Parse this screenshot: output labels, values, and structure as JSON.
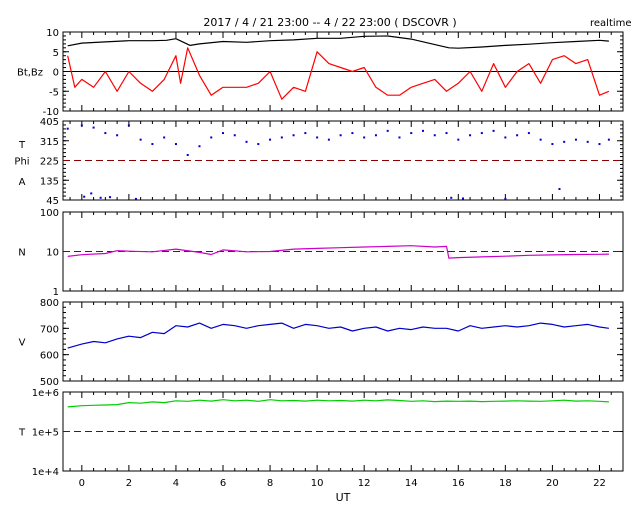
{
  "header": {
    "title": "2017 / 4 / 21   23:00 --  4 / 22   23:00 ( DSCOVR )",
    "mode": "realtime"
  },
  "chart_data": [
    {
      "id": "mag",
      "type": "line",
      "ylabel": "Bt,Bz",
      "ylim": [
        -10,
        10
      ],
      "yticks": [
        "10",
        "5",
        "0",
        "-5",
        "-10"
      ],
      "ref_lines": [
        0
      ],
      "series": [
        {
          "name": "Bt",
          "color": "#000000",
          "x": [
            -0.6,
            0,
            1,
            2,
            3,
            3.6,
            4,
            4.6,
            5,
            6,
            7,
            8,
            9,
            10,
            11,
            12,
            13,
            14,
            15,
            15.6,
            16,
            17,
            18,
            19,
            20,
            21,
            22,
            22.4
          ],
          "y": [
            6.5,
            7.2,
            7.5,
            7.8,
            7.8,
            7.9,
            8.3,
            6.6,
            7.0,
            7.6,
            7.4,
            7.8,
            8.0,
            8.4,
            8.4,
            8.9,
            9.0,
            8.2,
            6.8,
            6.0,
            5.9,
            6.2,
            6.6,
            6.9,
            7.3,
            7.6,
            7.9,
            7.7
          ]
        },
        {
          "name": "Bz",
          "color": "#ff0000",
          "x": [
            -0.6,
            -0.3,
            0,
            0.5,
            1,
            1.5,
            2,
            2.5,
            3,
            3.5,
            4,
            4.2,
            4.5,
            5,
            5.5,
            6,
            6.5,
            7,
            7.5,
            8,
            8.5,
            9,
            9.5,
            10,
            10.5,
            11,
            11.5,
            12,
            12.5,
            13,
            13.5,
            14,
            14.5,
            15,
            15.5,
            16,
            16.5,
            17,
            17.5,
            18,
            18.5,
            19,
            19.5,
            20,
            20.5,
            21,
            21.5,
            22,
            22.4
          ],
          "y": [
            4,
            -4,
            -2,
            -4,
            0,
            -5,
            0,
            -3,
            -5,
            -2,
            4,
            -3,
            6,
            -1,
            -6,
            -4,
            -4,
            -4,
            -3,
            0,
            -7,
            -4,
            -5,
            5,
            2,
            1,
            0,
            1,
            -4,
            -6,
            -6,
            -4,
            -3,
            -2,
            -5,
            -3,
            0,
            -5,
            2,
            -4,
            0,
            2,
            -3,
            3,
            4,
            2,
            3,
            -6,
            -5
          ]
        }
      ]
    },
    {
      "id": "phi",
      "type": "scatter",
      "ylabel": "T",
      "ylabel2": "Phi",
      "ylabel3": "A",
      "ylim": [
        45,
        405
      ],
      "yticks": [
        "405",
        "315",
        "225",
        "135",
        "45"
      ],
      "ref_lines": [
        225
      ],
      "series": [
        {
          "name": "Phi",
          "color": "#0000cc",
          "x": [
            -0.6,
            0,
            0.5,
            1,
            1.5,
            2,
            2.5,
            3,
            3.5,
            4,
            4.5,
            5,
            5.5,
            6,
            6.5,
            7,
            7.5,
            8,
            8.5,
            9,
            9.5,
            10,
            10.5,
            11,
            11.5,
            12,
            12.5,
            13,
            13.5,
            14,
            14.5,
            15,
            15.5,
            16,
            16.5,
            17,
            17.5,
            18,
            18.5,
            19,
            19.5,
            20,
            20.5,
            21,
            21.5,
            22,
            22.4
          ],
          "y": [
            370,
            385,
            375,
            350,
            340,
            385,
            320,
            300,
            330,
            300,
            250,
            290,
            330,
            350,
            340,
            310,
            300,
            320,
            330,
            340,
            350,
            330,
            320,
            340,
            350,
            330,
            340,
            360,
            330,
            350,
            360,
            340,
            350,
            320,
            340,
            350,
            360,
            330,
            340,
            350,
            320,
            300,
            310,
            320,
            310,
            300,
            320
          ]
        },
        {
          "name": "Phi-low",
          "color": "#0000cc",
          "x": [
            0.1,
            0.4,
            0.8,
            1.2,
            2.3,
            15.7,
            16.2,
            18.0,
            20.3
          ],
          "y": [
            60,
            75,
            55,
            58,
            50,
            55,
            52,
            50,
            95
          ]
        }
      ]
    },
    {
      "id": "density",
      "type": "line",
      "ylabel": "N",
      "scale": "log",
      "ylim": [
        1,
        100
      ],
      "yticks": [
        "100",
        "10",
        "1"
      ],
      "ref_lines": [
        10
      ],
      "series": [
        {
          "name": "N",
          "color": "#cc00cc",
          "x": [
            -0.6,
            0,
            1,
            1.5,
            2,
            3,
            4,
            5,
            5.5,
            6,
            7,
            8,
            9,
            10,
            11,
            12,
            13,
            14,
            15,
            15.5,
            15.6,
            16,
            17,
            18,
            19,
            20,
            21,
            22,
            22.4
          ],
          "y": [
            7.5,
            8.3,
            8.9,
            10.5,
            10.2,
            9.8,
            11.5,
            9.5,
            8.4,
            11,
            9.8,
            10,
            11.5,
            12,
            12.5,
            13,
            13.5,
            14,
            13,
            13.5,
            6.8,
            7,
            7.3,
            7.6,
            8,
            8.2,
            8.4,
            8.5,
            8.6
          ]
        }
      ]
    },
    {
      "id": "velocity",
      "type": "line",
      "ylabel": "V",
      "ylim": [
        500,
        800
      ],
      "yticks": [
        "800",
        "700",
        "600",
        "500"
      ],
      "ref_lines": [],
      "series": [
        {
          "name": "V",
          "color": "#0000cc",
          "x": [
            -0.6,
            0,
            0.5,
            1,
            1.5,
            2,
            2.5,
            3,
            3.5,
            4,
            4.5,
            5,
            5.5,
            6,
            6.5,
            7,
            7.5,
            8,
            8.5,
            9,
            9.5,
            10,
            10.5,
            11,
            11.5,
            12,
            12.5,
            13,
            13.5,
            14,
            14.5,
            15,
            15.5,
            16,
            16.5,
            17,
            17.5,
            18,
            18.5,
            19,
            19.5,
            20,
            20.5,
            21,
            21.5,
            22,
            22.4
          ],
          "y": [
            625,
            640,
            650,
            645,
            660,
            670,
            665,
            685,
            680,
            710,
            705,
            720,
            700,
            715,
            710,
            700,
            710,
            715,
            720,
            700,
            715,
            710,
            700,
            705,
            690,
            700,
            705,
            690,
            700,
            695,
            705,
            700,
            700,
            690,
            710,
            700,
            705,
            710,
            705,
            710,
            720,
            715,
            705,
            710,
            715,
            705,
            700
          ]
        }
      ]
    },
    {
      "id": "temperature",
      "type": "line",
      "ylabel": "T",
      "scale": "log",
      "ylim": [
        10000,
        1000000
      ],
      "yticks": [
        "1e+6",
        "1e+5",
        "1e+4"
      ],
      "ref_lines": [
        100000
      ],
      "series": [
        {
          "name": "T",
          "color": "#00cc00",
          "x": [
            -0.6,
            0,
            0.5,
            1,
            1.5,
            2,
            2.5,
            3,
            3.5,
            4,
            4.5,
            5,
            5.5,
            6,
            6.5,
            7,
            7.5,
            8,
            8.5,
            9,
            9.5,
            10,
            10.5,
            11,
            11.5,
            12,
            12.5,
            13,
            13.5,
            14,
            14.5,
            15,
            15.5,
            16,
            16.5,
            17,
            17.5,
            18,
            18.5,
            19,
            19.5,
            20,
            20.5,
            21,
            21.5,
            22,
            22.4
          ],
          "y": [
            420000,
            450000,
            460000,
            470000,
            480000,
            540000,
            520000,
            560000,
            540000,
            600000,
            580000,
            620000,
            590000,
            640000,
            600000,
            620000,
            580000,
            640000,
            600000,
            610000,
            590000,
            620000,
            600000,
            610000,
            590000,
            620000,
            600000,
            630000,
            610000,
            580000,
            600000,
            570000,
            590000,
            580000,
            590000,
            570000,
            580000,
            590000,
            600000,
            590000,
            580000,
            600000,
            620000,
            590000,
            600000,
            580000,
            560000
          ]
        }
      ]
    }
  ],
  "x_axis": {
    "label": "UT",
    "xlim": [
      -0.8,
      23
    ],
    "ticks": [
      "0",
      "2",
      "4",
      "6",
      "8",
      "10",
      "12",
      "14",
      "16",
      "18",
      "20",
      "22"
    ]
  }
}
